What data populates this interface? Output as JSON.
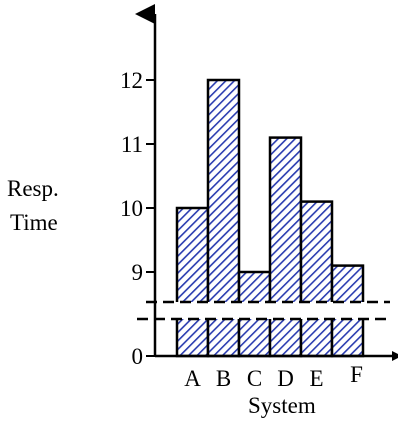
{
  "chart_data": {
    "type": "bar",
    "ylabel_line1": "Resp.",
    "ylabel_line2": "Time",
    "xlabel": "System",
    "categories": [
      "A",
      "B",
      "C",
      "D",
      "E",
      "F"
    ],
    "values": [
      10,
      12,
      9,
      11.1,
      10.1,
      9.1
    ],
    "y_ticks": [
      {
        "label": "0",
        "value": 0
      },
      {
        "label": "9",
        "value": 9
      },
      {
        "label": "10",
        "value": 10
      },
      {
        "label": "11",
        "value": 11
      },
      {
        "label": "12",
        "value": 12
      }
    ],
    "axis_break": true,
    "bar_fill": "diagonal-hatch",
    "colors": {
      "hatch": "#2a3cb0",
      "bar_outline": "#000000",
      "axis": "#000000"
    }
  }
}
